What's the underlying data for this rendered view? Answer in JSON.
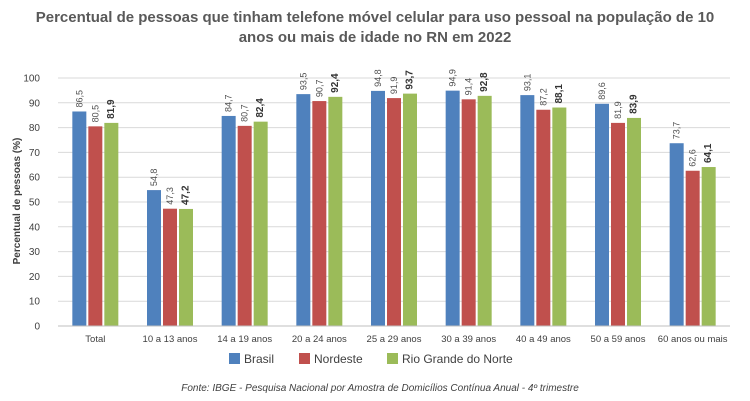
{
  "chart_data": {
    "type": "bar",
    "title_line1": "Percentual de pessoas que tinham telefone móvel celular para uso pessoal na população de 10",
    "title_line2": "anos ou mais de idade no RN em 2022",
    "ylabel": "Percentual de pessoas (%)",
    "ylim": [
      0,
      100
    ],
    "yticks": [
      "0",
      "10",
      "20",
      "30",
      "40",
      "50",
      "60",
      "70",
      "80",
      "90",
      "100"
    ],
    "categories": [
      "Total",
      "10 a 13 anos",
      "14 a 19 anos",
      "20 a 24 anos",
      "25 a 29 anos",
      "30 a 39 anos",
      "40 a 49 anos",
      "50 a 59 anos",
      "60 anos ou mais"
    ],
    "series": [
      {
        "name": "Brasil",
        "color": "#4f81bd",
        "values": [
          86.5,
          54.8,
          84.7,
          93.5,
          94.8,
          94.9,
          93.1,
          89.6,
          73.7
        ],
        "labels": [
          "86,5",
          "54,8",
          "84,7",
          "93,5",
          "94,8",
          "94,9",
          "93,1",
          "89,6",
          "73,7"
        ]
      },
      {
        "name": "Nordeste",
        "color": "#c0504d",
        "values": [
          80.5,
          47.3,
          80.7,
          90.7,
          91.9,
          91.4,
          87.2,
          81.9,
          62.6
        ],
        "labels": [
          "80,5",
          "47,3",
          "80,7",
          "90,7",
          "91,9",
          "91,4",
          "87,2",
          "81,9",
          "62,6"
        ]
      },
      {
        "name": "Rio Grande do Norte",
        "color": "#9bbb59",
        "values": [
          81.9,
          47.2,
          82.4,
          92.4,
          93.7,
          92.8,
          88.1,
          83.9,
          64.1
        ],
        "labels": [
          "81,9",
          "47,2",
          "82,4",
          "92,4",
          "93,7",
          "92,8",
          "88,1",
          "83,9",
          "64,1"
        ]
      }
    ],
    "grid": true,
    "legend_position": "bottom",
    "source": "Fonte: IBGE - Pesquisa Nacional por Amostra de Domicílios Contínua Anual - 4º trimestre"
  }
}
